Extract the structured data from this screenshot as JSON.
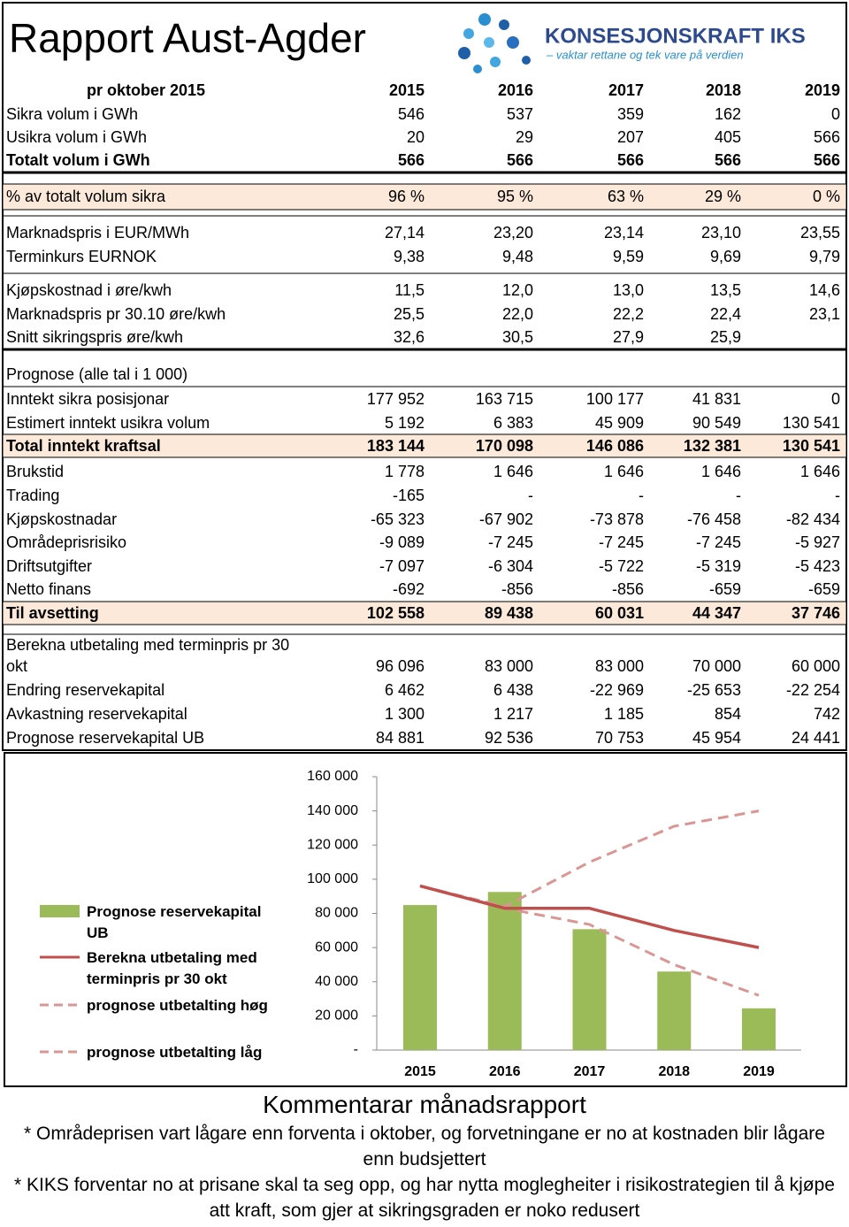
{
  "header": {
    "title": "Rapport Aust-Agder",
    "logo_name": "KONSESJONSKRAFT IKS",
    "logo_tagline": "– vaktar rettane og tek vare på verdien"
  },
  "table": {
    "rows": [
      [
        "pr oktober 2015",
        "2015",
        "2016",
        "2017",
        "2018",
        "2019"
      ],
      [
        "Sikra volum i GWh",
        "546",
        "537",
        "359",
        "162",
        "0"
      ],
      [
        "Usikra volum i GWh",
        "20",
        "29",
        "207",
        "405",
        "566"
      ],
      [
        "Totalt volum i GWh",
        "566",
        "566",
        "566",
        "566",
        "566"
      ],
      [
        "% av totalt volum sikra",
        "96 %",
        "95 %",
        "63 %",
        "29 %",
        "0 %"
      ],
      [
        "Marknadspris i EUR/MWh",
        "27,14",
        "23,20",
        "23,14",
        "23,10",
        "23,55"
      ],
      [
        "Terminkurs EURNOK",
        "9,38",
        "9,48",
        "9,59",
        "9,69",
        "9,79"
      ],
      [
        "Kjøpskostnad i øre/kwh",
        "11,5",
        "12,0",
        "13,0",
        "13,5",
        "14,6"
      ],
      [
        "Marknadspris pr 30.10 øre/kwh",
        "25,5",
        "22,0",
        "22,2",
        "22,4",
        "23,1"
      ],
      [
        "Snitt sikringspris øre/kwh",
        "32,6",
        "30,5",
        "27,9",
        "25,9"
      ],
      [
        "Prognose (alle tal i 1 000)"
      ],
      [
        "Inntekt sikra posisjonar",
        "177 952",
        "163 715",
        "100 177",
        "41 831",
        "0"
      ],
      [
        "Estimert inntekt usikra volum",
        "5 192",
        "6 383",
        "45 909",
        "90 549",
        "130 541"
      ],
      [
        "Total inntekt kraftsal",
        "183 144",
        "170 098",
        "146 086",
        "132 381",
        "130 541"
      ],
      [
        "Brukstid",
        "1 778",
        "1 646",
        "1 646",
        "1 646",
        "1 646"
      ],
      [
        "Trading",
        "-165",
        "-",
        "-",
        "-",
        "-"
      ],
      [
        "Kjøpskostnadar",
        "-65 323",
        "-67 902",
        "-73 878",
        "-76 458",
        "-82 434"
      ],
      [
        "Områdeprisrisiko",
        "-9 089",
        "-7 245",
        "-7 245",
        "-7 245",
        "-5 927"
      ],
      [
        "Driftsutgifter",
        "-7 097",
        "-6 304",
        "-5 722",
        "-5 319",
        "-5 423"
      ],
      [
        "Netto finans",
        "-692",
        "-856",
        "-856",
        "-659",
        "-659"
      ],
      [
        "Til avsetting",
        "102 558",
        "89 438",
        "60 031",
        "44 347",
        "37 746"
      ],
      [
        "Berekna utbetaling med terminpris pr 30 okt",
        "96 096",
        "83 000",
        "83 000",
        "70 000",
        "60 000"
      ],
      [
        "Endring reservekapital",
        "6 462",
        "6 438",
        "-22 969",
        "-25 653",
        "-22 254"
      ],
      [
        "Avkastning reservekapital",
        "1 300",
        "1 217",
        "1 185",
        "854",
        "742"
      ],
      [
        "Prognose reservekapital UB",
        "84 881",
        "92 536",
        "70 753",
        "45 954",
        "24 441"
      ]
    ]
  },
  "chart_data": {
    "type": "bar",
    "categories": [
      "2015",
      "2016",
      "2017",
      "2018",
      "2019"
    ],
    "ylim": [
      0,
      160000
    ],
    "yticks": [
      {
        "value": 0,
        "label": "-"
      },
      {
        "value": 20000,
        "label": "20 000"
      },
      {
        "value": 40000,
        "label": "40 000"
      },
      {
        "value": 60000,
        "label": "60 000"
      },
      {
        "value": 80000,
        "label": "80 000"
      },
      {
        "value": 100000,
        "label": "100 000"
      },
      {
        "value": 120000,
        "label": "120 000"
      },
      {
        "value": 140000,
        "label": "140 000"
      },
      {
        "value": 160000,
        "label": "160 000"
      }
    ],
    "series": [
      {
        "name": "Prognose reservekapital UB",
        "type": "bar",
        "color": "#9bbb59",
        "values": [
          84881,
          92536,
          70753,
          45954,
          24441
        ]
      },
      {
        "name": "Berekna utbetaling med terminpris pr 30 okt",
        "type": "line",
        "color": "#c0504d",
        "values": [
          96096,
          83000,
          83000,
          70000,
          60000
        ]
      },
      {
        "name": "prognose utbetalting høg",
        "type": "dashed",
        "color": "#d99694",
        "values": [
          96000,
          84000,
          110000,
          131000,
          140000
        ]
      },
      {
        "name": "prognose utbetalting låg",
        "type": "dashed",
        "color": "#d99694",
        "values": [
          96000,
          83000,
          73500,
          50000,
          32000
        ]
      }
    ]
  },
  "comments": {
    "title": "Kommentarar månadsrapport",
    "items": [
      "* Områdeprisen vart lågare enn forventa i oktober, og forvetningane er no at kostnaden blir lågare enn budsjettert",
      "* KIKS forventar no at prisane skal ta seg opp, og har nytta moglegheiter i risikostrategien til å kjøpe att kraft, som gjer at sikringsgraden er noko redusert"
    ]
  }
}
